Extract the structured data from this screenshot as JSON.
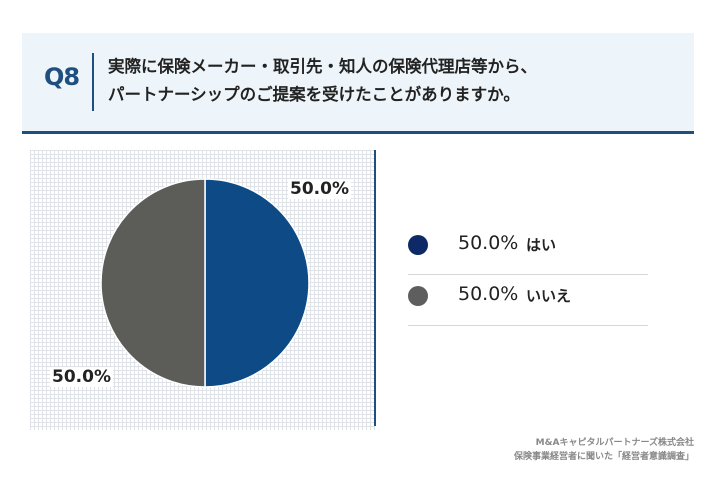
{
  "header": {
    "question_number": "Q8",
    "question_lines": [
      "実際に保険メーカー・取引先・知人の保険代理店等から、",
      "パートナーシップのご提案を受けたことがありますか。"
    ]
  },
  "chart_data": {
    "type": "pie",
    "title": "",
    "categories": [
      "はい",
      "いいえ"
    ],
    "values": [
      50.0,
      50.0
    ],
    "data_labels": [
      "50.0%",
      "50.0%"
    ],
    "legend": [
      {
        "label": "はい",
        "percent": "50.0%",
        "color": "#0e2a66"
      },
      {
        "label": "いいえ",
        "percent": "50.0%",
        "color": "#5e5e5e"
      }
    ],
    "colors": [
      "#0e4a86",
      "#5c5c58"
    ],
    "start_angle_deg": 0,
    "direction": "clockwise",
    "legend_position": "right",
    "grid_background": true
  },
  "footer": {
    "line1": "M&Aキャピタルパートナーズ株式会社",
    "line2": "保険事業経営者に聞いた「経営者意識調査」"
  }
}
